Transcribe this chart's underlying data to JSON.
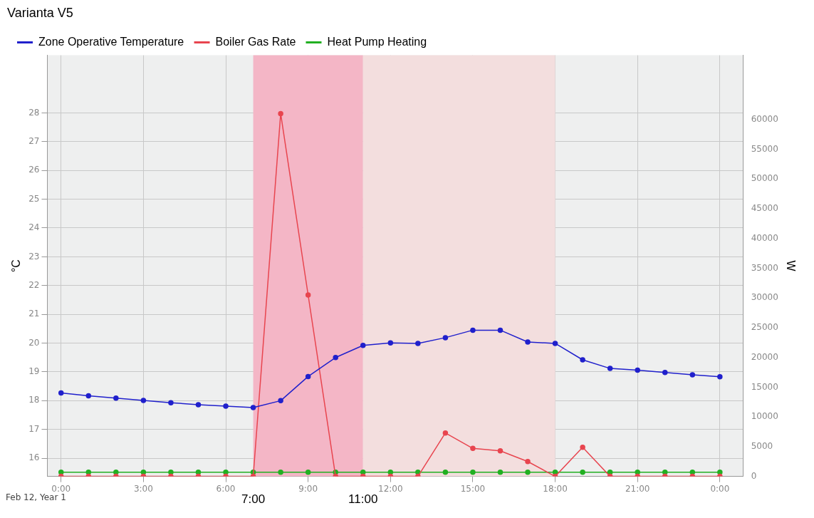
{
  "chart_data": {
    "type": "line",
    "title": "Varianta V5",
    "ylabel": "°C",
    "y2label": "W",
    "x": [
      0,
      1,
      2,
      3,
      4,
      5,
      6,
      7,
      8,
      9,
      10,
      11,
      12,
      13,
      14,
      15,
      16,
      17,
      18,
      19,
      20,
      21,
      22,
      23,
      24
    ],
    "series": [
      {
        "name": "Zone Operative Temperature",
        "color": "#2020cc",
        "values": [
          18.27,
          18.17,
          18.09,
          18.01,
          17.93,
          17.86,
          17.81,
          17.76,
          18.0,
          18.84,
          19.5,
          19.92,
          20.01,
          19.99,
          20.19,
          20.45,
          20.45,
          20.04,
          19.99,
          19.42,
          19.12,
          19.06,
          18.98,
          18.9,
          18.83
        ]
      },
      {
        "name": "Boiler Gas Rate",
        "color": "#e8454f",
        "axis": "y2",
        "values": [
          0,
          0,
          0,
          0,
          0,
          0,
          0,
          0,
          61000,
          30500,
          0,
          0,
          0,
          0,
          7300,
          4700,
          4300,
          2500,
          0,
          4900,
          0,
          0,
          0,
          0,
          0
        ]
      },
      {
        "name": "Heat Pump Heating",
        "color": "#22b022",
        "axis": "y2",
        "values": [
          700,
          700,
          700,
          700,
          700,
          700,
          700,
          700,
          700,
          700,
          700,
          700,
          700,
          700,
          700,
          700,
          700,
          700,
          700,
          700,
          700,
          700,
          700,
          700,
          700
        ]
      }
    ],
    "xlim": [
      -0.5,
      24.85
    ],
    "xticks": [
      {
        "value": 0,
        "label": "0:00"
      },
      {
        "value": 3,
        "label": "3:00"
      },
      {
        "value": 6,
        "label": "6:00"
      },
      {
        "value": 9,
        "label": "9:00"
      },
      {
        "value": 12,
        "label": "12:00"
      },
      {
        "value": 15,
        "label": "15:00"
      },
      {
        "value": 18,
        "label": "18:00"
      },
      {
        "value": 21,
        "label": "21:00"
      },
      {
        "value": 24,
        "label": "0:00"
      }
    ],
    "ylim": [
      15.37,
      30
    ],
    "yticks": [
      16,
      17,
      18,
      19,
      20,
      21,
      22,
      23,
      24,
      25,
      26,
      27,
      28
    ],
    "y2lim": [
      0,
      70800
    ],
    "y2ticks": [
      0,
      5000,
      10000,
      15000,
      20000,
      25000,
      30000,
      35000,
      40000,
      45000,
      50000,
      55000,
      60000
    ],
    "bands": [
      {
        "axis": "x",
        "from": 7,
        "to": 11,
        "color": "#f4b6c6"
      },
      {
        "axis": "x",
        "from": 11,
        "to": 18,
        "color": "#f3dede"
      }
    ],
    "annotations": [
      "7:00",
      "11:00",
      "Feb 12, Year 1"
    ],
    "grid": true,
    "legend": "top left",
    "marker": "circle",
    "line_style": "solid"
  }
}
